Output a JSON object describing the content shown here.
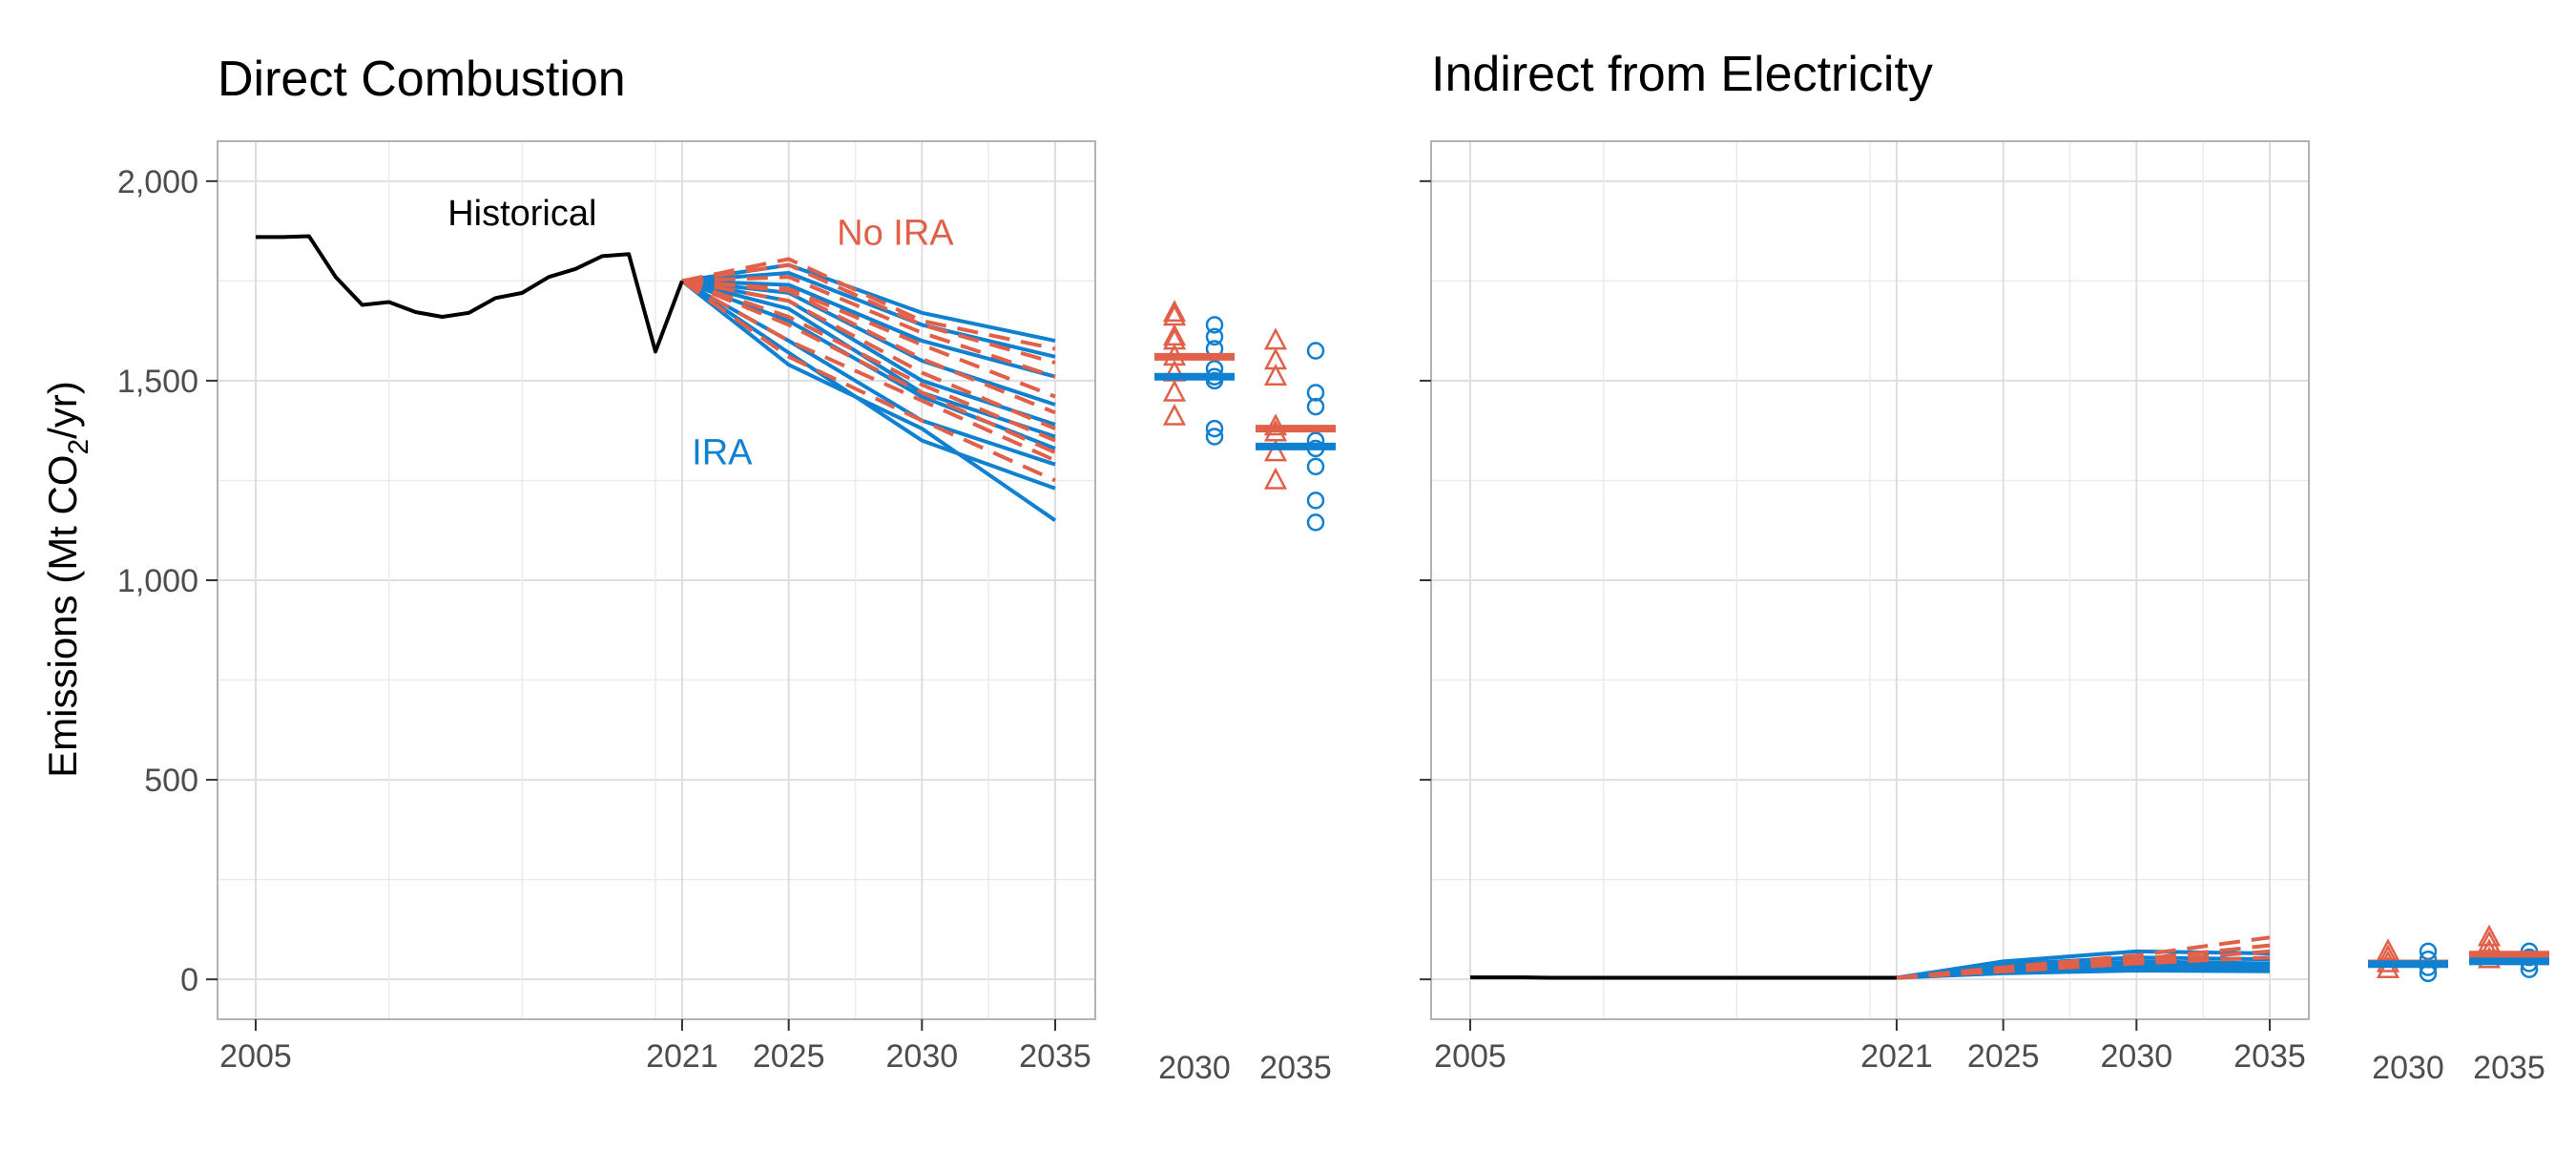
{
  "ylabel_pre": "Emissions (Mt CO",
  "ylabel_sub": "2",
  "ylabel_post": "/yr)",
  "colors": {
    "historical": "#000000",
    "no_ira": "#e0604a",
    "ira": "#1080d0"
  },
  "chart_data": [
    {
      "type": "line",
      "title": "Direct Combustion",
      "ylim": [
        -100,
        2100
      ],
      "yticks": [
        0,
        500,
        1000,
        1500,
        2000
      ],
      "ytick_labels": [
        "0",
        "500",
        "1,000",
        "1,500",
        "2,000"
      ],
      "xticks": [
        2005,
        2021,
        2025,
        2030,
        2035
      ],
      "xtick_labels": [
        "2005",
        "2021",
        "2025",
        "2030",
        "2035"
      ],
      "grid": true,
      "annotations": [
        {
          "text": "Historical",
          "x": 2015,
          "y": 1890,
          "color": "historical"
        },
        {
          "text": "No IRA",
          "x": 2029,
          "y": 1840,
          "color": "no_ira"
        },
        {
          "text": "IRA",
          "x": 2022.5,
          "y": 1290,
          "color": "ira"
        }
      ],
      "historical": {
        "x": [
          2005,
          2006,
          2007,
          2008,
          2009,
          2010,
          2011,
          2012,
          2013,
          2014,
          2015,
          2016,
          2017,
          2018,
          2019,
          2020,
          2021
        ],
        "y": [
          1860,
          1860,
          1862,
          1760,
          1690,
          1697,
          1672,
          1660,
          1670,
          1707,
          1720,
          1760,
          1780,
          1812,
          1817,
          1573,
          1750
        ]
      },
      "no_ira_x": [
        2021,
        2025,
        2030,
        2035
      ],
      "no_ira": [
        [
          1750,
          1805,
          1650,
          1580
        ],
        [
          1750,
          1790,
          1640,
          1545
        ],
        [
          1750,
          1760,
          1620,
          1510
        ],
        [
          1750,
          1730,
          1590,
          1460
        ],
        [
          1750,
          1725,
          1555,
          1420
        ],
        [
          1750,
          1700,
          1520,
          1380
        ],
        [
          1750,
          1660,
          1490,
          1350
        ],
        [
          1750,
          1640,
          1470,
          1320
        ],
        [
          1750,
          1600,
          1450,
          1300
        ],
        [
          1750,
          1560,
          1400,
          1250
        ]
      ],
      "ira_x": [
        2021,
        2025,
        2030,
        2035
      ],
      "ira": [
        [
          1750,
          1790,
          1670,
          1600
        ],
        [
          1750,
          1770,
          1640,
          1560
        ],
        [
          1750,
          1740,
          1600,
          1510
        ],
        [
          1750,
          1720,
          1550,
          1440
        ],
        [
          1750,
          1700,
          1500,
          1390
        ],
        [
          1750,
          1680,
          1470,
          1360
        ],
        [
          1750,
          1650,
          1460,
          1330
        ],
        [
          1750,
          1600,
          1400,
          1290
        ],
        [
          1750,
          1570,
          1350,
          1230
        ],
        [
          1750,
          1540,
          1380,
          1150
        ]
      ],
      "summary_2030": {
        "no_ira_points": [
          1670,
          1660,
          1610,
          1600,
          1560,
          1520,
          1470,
          1410
        ],
        "no_ira_mean": 1560,
        "ira_points": [
          1640,
          1610,
          1580,
          1530,
          1510,
          1500,
          1380,
          1360
        ],
        "ira_mean": 1510
      },
      "summary_2035": {
        "no_ira_points": [
          1600,
          1550,
          1510,
          1385,
          1370,
          1320,
          1250
        ],
        "no_ira_mean": 1380,
        "ira_points": [
          1575,
          1470,
          1435,
          1350,
          1330,
          1285,
          1200,
          1145
        ],
        "ira_mean": 1335
      },
      "summary_labels": [
        "2030",
        "2035"
      ]
    },
    {
      "type": "line",
      "title": "Indirect from Electricity",
      "ylim": [
        -100,
        2100
      ],
      "yticks": [
        0,
        500,
        1000,
        1500,
        2000
      ],
      "xticks": [
        2005,
        2021,
        2025,
        2030,
        2035
      ],
      "xtick_labels": [
        "2005",
        "2021",
        "2025",
        "2030",
        "2035"
      ],
      "grid": true,
      "historical": {
        "x": [
          2005,
          2006,
          2007,
          2008,
          2009,
          2010,
          2011,
          2012,
          2013,
          2014,
          2015,
          2016,
          2017,
          2018,
          2019,
          2020,
          2021
        ],
        "y": [
          5,
          5,
          5,
          4,
          4,
          4,
          4,
          4,
          4,
          4,
          4,
          4,
          4,
          4,
          4,
          4,
          4
        ]
      },
      "no_ira_x": [
        2021,
        2025,
        2030,
        2035
      ],
      "no_ira": [
        [
          4,
          30,
          60,
          105
        ],
        [
          4,
          25,
          50,
          85
        ],
        [
          4,
          22,
          45,
          70
        ],
        [
          4,
          20,
          40,
          55
        ]
      ],
      "ira_x": [
        2021,
        2025,
        2030,
        2035
      ],
      "ira": [
        [
          4,
          45,
          70,
          65
        ],
        [
          4,
          38,
          55,
          50
        ],
        [
          4,
          30,
          45,
          40
        ],
        [
          4,
          25,
          38,
          35
        ],
        [
          4,
          20,
          30,
          28
        ],
        [
          4,
          15,
          22,
          20
        ]
      ],
      "summary_2030": {
        "no_ira_points": [
          70,
          55,
          40,
          25
        ],
        "no_ira_mean": 40,
        "ira_points": [
          70,
          50,
          30,
          15
        ],
        "ira_mean": 38
      },
      "summary_2035": {
        "no_ira_points": [
          105,
          90,
          70,
          50
        ],
        "no_ira_mean": 62,
        "ira_points": [
          70,
          55,
          40,
          25
        ],
        "ira_mean": 45
      },
      "summary_labels": [
        "2030",
        "2035"
      ]
    }
  ]
}
